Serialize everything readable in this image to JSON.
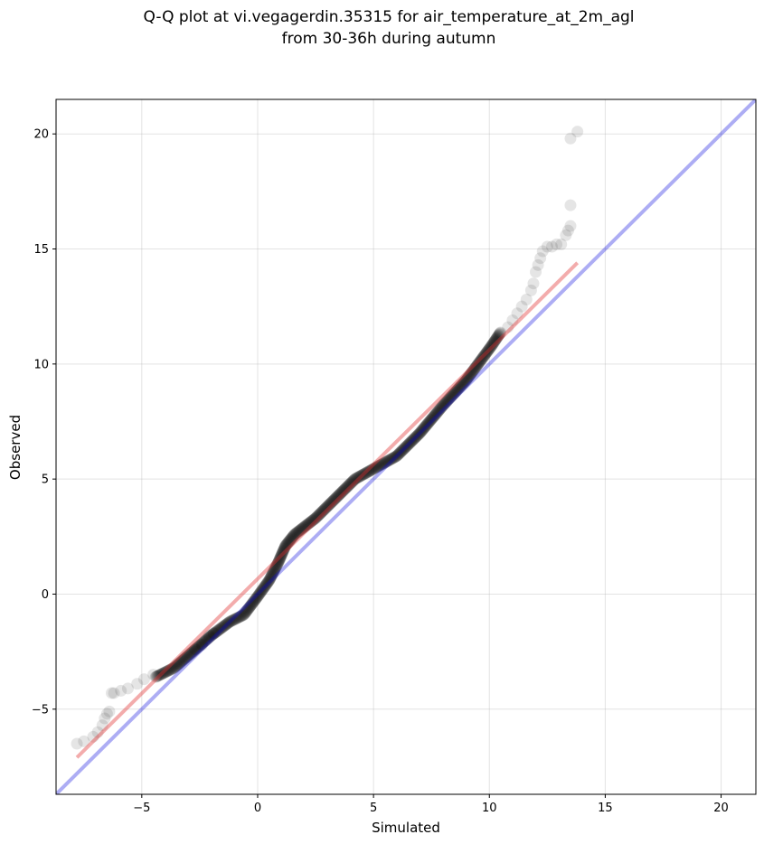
{
  "chart_data": {
    "type": "scatter",
    "title_line1": "Q-Q plot at vi.vegagerdin.35315 for air_temperature_at_2m_agl",
    "title_line2": "from 30-36h during autumn",
    "xlabel": "Simulated",
    "ylabel": "Observed",
    "xlim": [
      -8.7,
      21.5
    ],
    "ylim": [
      -8.7,
      21.5
    ],
    "x_ticks": [
      -5,
      0,
      5,
      10,
      15,
      20
    ],
    "y_ticks": [
      -5,
      0,
      5,
      10,
      15,
      20
    ],
    "x_tick_labels": [
      "−5",
      "0",
      "5",
      "10",
      "15",
      "20"
    ],
    "y_tick_labels": [
      "−5",
      "0",
      "5",
      "10",
      "15",
      "20"
    ],
    "grid": true,
    "identity_line": {
      "color": "#0000dd",
      "from": [
        -8.7,
        -8.7
      ],
      "to": [
        21.5,
        21.5
      ]
    },
    "fit_line": {
      "color": "#e03030",
      "from": [
        -7.8,
        -7.1
      ],
      "to": [
        13.8,
        14.4
      ]
    },
    "curve_anchors": [
      [
        -4.4,
        -3.6
      ],
      [
        -3.6,
        -3.2
      ],
      [
        -2.8,
        -2.5
      ],
      [
        -2.0,
        -1.8
      ],
      [
        -1.2,
        -1.2
      ],
      [
        -0.6,
        -0.9
      ],
      [
        0.0,
        -0.1
      ],
      [
        0.5,
        0.6
      ],
      [
        0.9,
        1.4
      ],
      [
        1.2,
        2.1
      ],
      [
        1.6,
        2.6
      ],
      [
        2.5,
        3.3
      ],
      [
        3.3,
        4.1
      ],
      [
        4.2,
        5.0
      ],
      [
        5.1,
        5.5
      ],
      [
        6.0,
        6.0
      ],
      [
        7.0,
        7.0
      ],
      [
        8.0,
        8.2
      ],
      [
        9.0,
        9.3
      ],
      [
        10.1,
        10.8
      ],
      [
        10.5,
        11.4
      ]
    ],
    "tail_points": [
      [
        -7.8,
        -6.5
      ],
      [
        -7.5,
        -6.4
      ],
      [
        -7.1,
        -6.2
      ],
      [
        -6.9,
        -6.0
      ],
      [
        -6.7,
        -5.7
      ],
      [
        -6.6,
        -5.4
      ],
      [
        -6.5,
        -5.2
      ],
      [
        -6.4,
        -5.1
      ],
      [
        -6.3,
        -4.3
      ],
      [
        -6.2,
        -4.3
      ],
      [
        -5.9,
        -4.2
      ],
      [
        -5.6,
        -4.1
      ],
      [
        -5.2,
        -3.9
      ],
      [
        -4.9,
        -3.7
      ],
      [
        -4.5,
        -3.5
      ],
      [
        -2.7,
        -2.4
      ],
      [
        -2.4,
        -2.2
      ],
      [
        -2.1,
        -1.8
      ],
      [
        -1.9,
        -1.7
      ],
      [
        10.8,
        11.6
      ],
      [
        11.0,
        11.9
      ],
      [
        11.2,
        12.2
      ],
      [
        11.4,
        12.5
      ],
      [
        11.6,
        12.8
      ],
      [
        11.8,
        13.2
      ],
      [
        11.9,
        13.5
      ],
      [
        12.0,
        14.0
      ],
      [
        12.1,
        14.3
      ],
      [
        12.2,
        14.6
      ],
      [
        12.3,
        14.9
      ],
      [
        12.5,
        15.1
      ],
      [
        12.7,
        15.1
      ],
      [
        12.9,
        15.2
      ],
      [
        13.1,
        15.2
      ],
      [
        13.3,
        15.6
      ],
      [
        13.4,
        15.8
      ],
      [
        13.5,
        16.0
      ],
      [
        13.5,
        16.9
      ],
      [
        13.5,
        19.8
      ],
      [
        13.8,
        20.1
      ]
    ]
  }
}
